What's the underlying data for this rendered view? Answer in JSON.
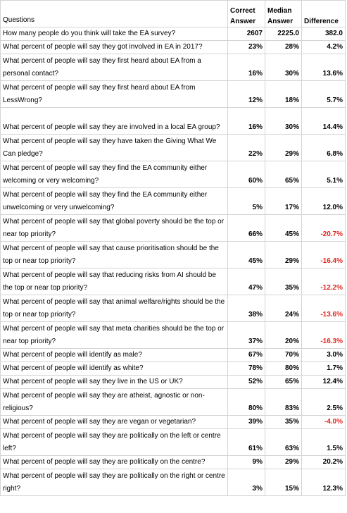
{
  "header": {
    "questions": "Questions",
    "correct": "Correct Answer",
    "median": "Median Answer",
    "difference": "Difference"
  },
  "rows": [
    {
      "q": "How many people do you think will take the EA survey?",
      "a": "2607",
      "m": "2225.0",
      "d": "382.0",
      "neg": false
    },
    {
      "q": "What percent of people will say they got involved in EA in 2017?",
      "a": "23%",
      "m": "28%",
      "d": "4.2%",
      "neg": false
    },
    {
      "q": "What percent of people will say they first heard about EA from a personal contact?",
      "a": "16%",
      "m": "30%",
      "d": "13.6%",
      "neg": false
    },
    {
      "q": "What percent of people will say they first heard about EA from LessWrong?",
      "a": "12%",
      "m": "18%",
      "d": "5.7%",
      "neg": false
    },
    {
      "q": "What percent of people will say they are involved in a local EA group?",
      "a": "16%",
      "m": "30%",
      "d": "14.4%",
      "neg": false
    },
    {
      "q": "What percent of people will say they have taken the Giving What We Can pledge?",
      "a": "22%",
      "m": "29%",
      "d": "6.8%",
      "neg": false
    },
    {
      "q": "What percent of people will say they find the EA community either welcoming or very welcoming?",
      "a": "60%",
      "m": "65%",
      "d": "5.1%",
      "neg": false
    },
    {
      "q": "What percent of people will say they find the EA community either unwelcoming or very unwelcoming?",
      "a": "5%",
      "m": "17%",
      "d": "12.0%",
      "neg": false
    },
    {
      "q": "What percent of people will say that global poverty should be the top or near top priority?",
      "a": "66%",
      "m": "45%",
      "d": "-20.7%",
      "neg": true
    },
    {
      "q": "What percent of people will say that cause prioritisation should be the top or near top priority?",
      "a": "45%",
      "m": "29%",
      "d": "-16.4%",
      "neg": true
    },
    {
      "q": "What percent of people will say that reducing risks from AI should be the top or near top priority?",
      "a": "47%",
      "m": "35%",
      "d": "-12.2%",
      "neg": true
    },
    {
      "q": "What percent of people will say that animal welfare/rights should be the top or near top priority?",
      "a": "38%",
      "m": "24%",
      "d": "-13.6%",
      "neg": true
    },
    {
      "q": "What percent of people will say that meta charities should be the top or near top priority?",
      "a": "37%",
      "m": "20%",
      "d": "-16.3%",
      "neg": true
    },
    {
      "q": "What percent of people will identify as male?",
      "a": "67%",
      "m": "70%",
      "d": "3.0%",
      "neg": false
    },
    {
      "q": "What percent of people will identify as white?",
      "a": "78%",
      "m": "80%",
      "d": "1.7%",
      "neg": false
    },
    {
      "q": "What percent of people will say they live in the US or UK?",
      "a": "52%",
      "m": "65%",
      "d": "12.4%",
      "neg": false
    },
    {
      "q": "What percent of people will say they are atheist, agnostic or non-religious?",
      "a": "80%",
      "m": "83%",
      "d": "2.5%",
      "neg": false
    },
    {
      "q": "What percent of people will say they are vegan or vegetarian?",
      "a": "39%",
      "m": "35%",
      "d": "-4.0%",
      "neg": true
    },
    {
      "q": "What percent of people will say they are politically on the left or centre left?",
      "a": "61%",
      "m": "63%",
      "d": "1.5%",
      "neg": false
    },
    {
      "q": "What percent of people will say they are politically on the centre?",
      "a": "9%",
      "m": "29%",
      "d": "20.2%",
      "neg": false
    },
    {
      "q": "What percent of people will say they are politically on the right or centre right?",
      "a": "3%",
      "m": "15%",
      "d": "12.3%",
      "neg": false
    }
  ]
}
